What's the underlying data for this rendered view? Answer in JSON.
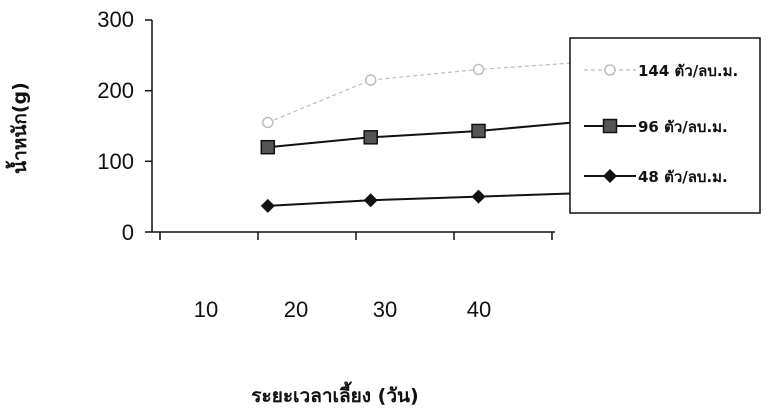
{
  "chart_data": {
    "type": "line",
    "xlabel": "ระยะเวลาเลี้ยง (วัน)",
    "ylabel": "น้ำหนัก(g)",
    "xticks": [
      "10",
      "20",
      "30",
      "40"
    ],
    "yticks": [
      "0",
      "100",
      "200",
      "300"
    ],
    "ylim": [
      0,
      300
    ],
    "grid": false,
    "legend": "right",
    "series": [
      {
        "name": "144 ตัว/ลบ.ม.",
        "marker": "circle",
        "color": "#bdbdbd",
        "x": [
          11,
          21.5,
          32.5,
          43
        ],
        "y": [
          155,
          215,
          230,
          240
        ]
      },
      {
        "name": "96 ตัว/ลบ.ม.",
        "marker": "square",
        "color": "#111111",
        "x": [
          11,
          21.5,
          32.5,
          43
        ],
        "y": [
          120,
          134,
          143,
          156
        ]
      },
      {
        "name": "48 ตัว/ลบ.ม.",
        "marker": "diamond",
        "color": "#111111",
        "x": [
          11,
          21.5,
          32.5,
          43
        ],
        "y": [
          37,
          45,
          50,
          55
        ]
      }
    ]
  }
}
